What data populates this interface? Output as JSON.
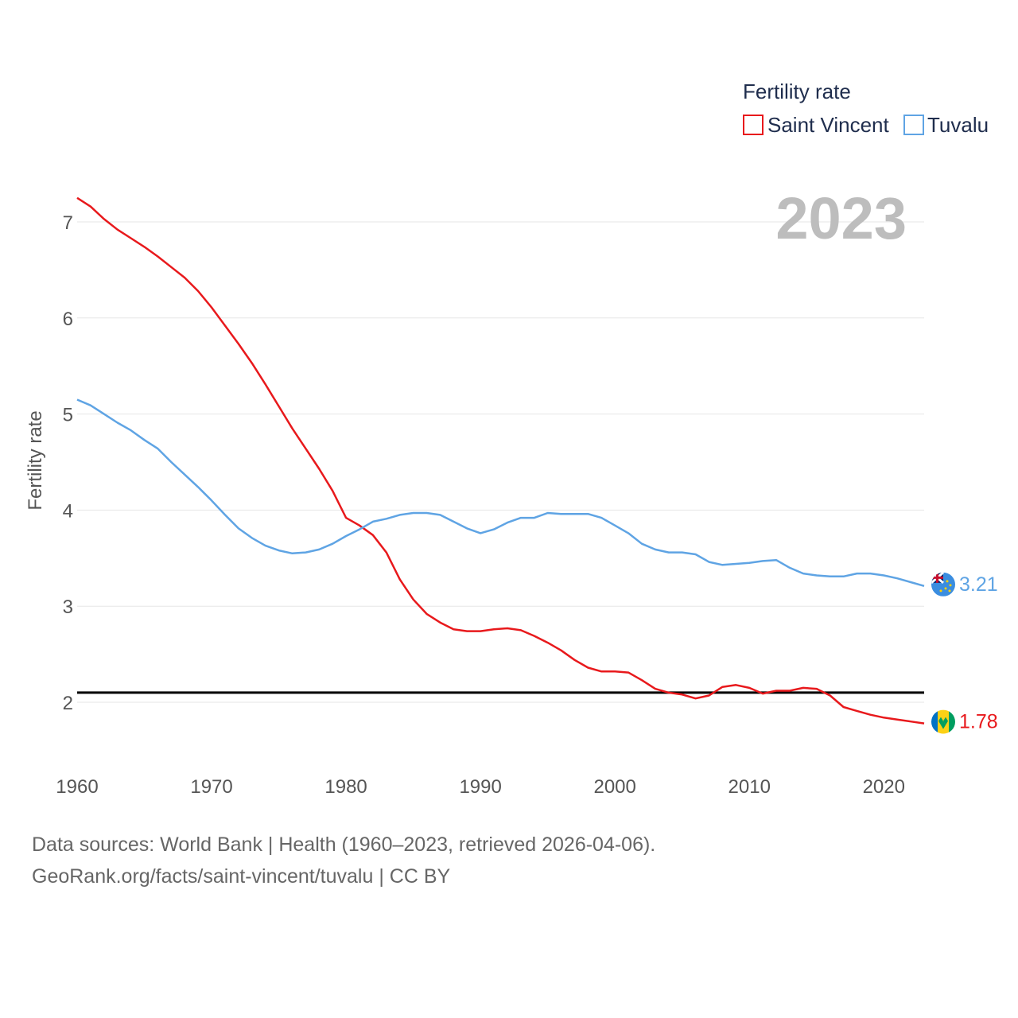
{
  "chart_data": {
    "type": "line",
    "title": "Fertility rate",
    "xlabel": "",
    "ylabel": "Fertility rate",
    "xlim": [
      1960,
      2023
    ],
    "ylim": [
      1.4,
      7.3
    ],
    "yticks": [
      2,
      3,
      4,
      5,
      6,
      7
    ],
    "xticks": [
      1960,
      1970,
      1980,
      1990,
      2000,
      2010,
      2020
    ],
    "grid": true,
    "legend_position": "top-right",
    "year_label": "2023",
    "reference_line": 2.1,
    "x": [
      1960,
      1961,
      1962,
      1963,
      1964,
      1965,
      1966,
      1967,
      1968,
      1969,
      1970,
      1971,
      1972,
      1973,
      1974,
      1975,
      1976,
      1977,
      1978,
      1979,
      1980,
      1981,
      1982,
      1983,
      1984,
      1985,
      1986,
      1987,
      1988,
      1989,
      1990,
      1991,
      1992,
      1993,
      1994,
      1995,
      1996,
      1997,
      1998,
      1999,
      2000,
      2001,
      2002,
      2003,
      2004,
      2005,
      2006,
      2007,
      2008,
      2009,
      2010,
      2011,
      2012,
      2013,
      2014,
      2015,
      2016,
      2017,
      2018,
      2019,
      2020,
      2021,
      2022,
      2023
    ],
    "series": [
      {
        "name": "Saint Vincent",
        "color": "#e8191c",
        "end_label": "1.78",
        "values": [
          7.25,
          7.16,
          7.03,
          6.92,
          6.83,
          6.74,
          6.64,
          6.53,
          6.42,
          6.28,
          6.11,
          5.92,
          5.73,
          5.53,
          5.31,
          5.08,
          4.85,
          4.64,
          4.43,
          4.2,
          3.92,
          3.84,
          3.74,
          3.56,
          3.28,
          3.07,
          2.92,
          2.83,
          2.76,
          2.74,
          2.74,
          2.76,
          2.77,
          2.75,
          2.69,
          2.62,
          2.54,
          2.44,
          2.36,
          2.32,
          2.32,
          2.31,
          2.23,
          2.14,
          2.1,
          2.08,
          2.04,
          2.07,
          2.16,
          2.18,
          2.15,
          2.09,
          2.12,
          2.12,
          2.15,
          2.14,
          2.07,
          1.95,
          1.91,
          1.87,
          1.84,
          1.82,
          1.8,
          1.78
        ]
      },
      {
        "name": "Tuvalu",
        "color": "#5fa4e4",
        "end_label": "3.21",
        "values": [
          5.15,
          5.09,
          5.0,
          4.91,
          4.83,
          4.73,
          4.64,
          4.5,
          4.37,
          4.24,
          4.1,
          3.95,
          3.81,
          3.71,
          3.63,
          3.58,
          3.55,
          3.56,
          3.59,
          3.65,
          3.73,
          3.8,
          3.88,
          3.91,
          3.95,
          3.97,
          3.97,
          3.95,
          3.88,
          3.81,
          3.76,
          3.8,
          3.87,
          3.92,
          3.92,
          3.97,
          3.96,
          3.96,
          3.96,
          3.92,
          3.84,
          3.76,
          3.65,
          3.59,
          3.56,
          3.56,
          3.54,
          3.46,
          3.43,
          3.44,
          3.45,
          3.47,
          3.48,
          3.4,
          3.34,
          3.32,
          3.31,
          3.31,
          3.34,
          3.34,
          3.32,
          3.29,
          3.25,
          3.21
        ]
      }
    ]
  },
  "source_line1": "Data sources: World Bank | Health (1960–2023, retrieved 2026-04-06).",
  "source_line2": "GeoRank.org/facts/saint-vincent/tuvalu | CC BY"
}
